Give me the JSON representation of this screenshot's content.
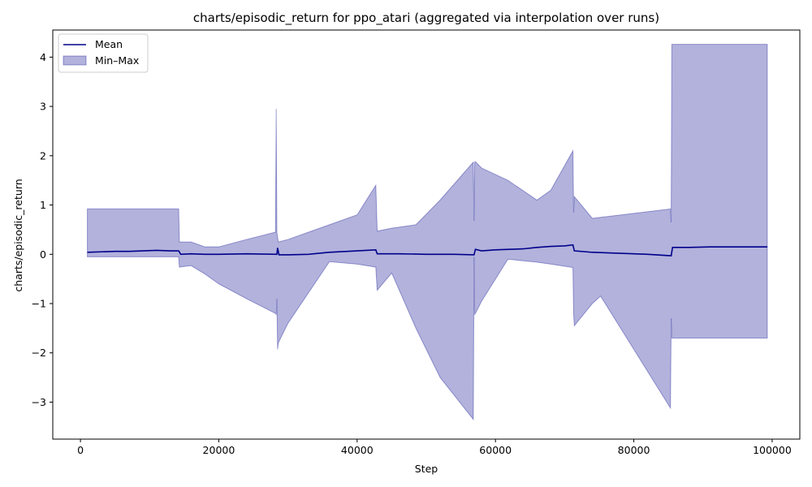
{
  "chart_data": {
    "type": "line",
    "title": "charts/episodic_return for ppo_atari (aggregated via interpolation over runs)",
    "xlabel": "Step",
    "ylabel": "charts/episodic_return",
    "xlim": [
      -4000,
      104000
    ],
    "ylim": [
      -3.75,
      4.55
    ],
    "xticks": [
      0,
      20000,
      40000,
      60000,
      80000,
      100000
    ],
    "yticks": [
      -3,
      -2,
      -1,
      0,
      1,
      2,
      3,
      4
    ],
    "grid": false,
    "legend_position": "top-left",
    "series": [
      {
        "name": "Mean",
        "kind": "line",
        "color": "#00008b",
        "x": [
          1000,
          3000,
          5000,
          7000,
          9000,
          11000,
          13000,
          14200,
          14500,
          16000,
          18000,
          20000,
          24000,
          28400,
          28500,
          28700,
          30000,
          33000,
          36000,
          40000,
          42700,
          42900,
          46000,
          50000,
          54000,
          56900,
          57100,
          58000,
          60000,
          62000,
          64000,
          66000,
          68000,
          70000,
          71200,
          71400,
          74000,
          78000,
          82000,
          85400,
          85600,
          88000,
          91000,
          94000,
          97000,
          99300
        ],
        "y": [
          0.04,
          0.05,
          0.06,
          0.06,
          0.07,
          0.08,
          0.07,
          0.07,
          0.0,
          0.01,
          0.0,
          0.0,
          0.01,
          0.0,
          0.13,
          -0.01,
          -0.01,
          0.0,
          0.04,
          0.07,
          0.09,
          0.01,
          0.01,
          0.0,
          0.0,
          -0.01,
          0.1,
          0.07,
          0.09,
          0.1,
          0.11,
          0.14,
          0.16,
          0.17,
          0.19,
          0.07,
          0.04,
          0.02,
          0.0,
          -0.03,
          0.14,
          0.14,
          0.15,
          0.15,
          0.15,
          0.15
        ]
      },
      {
        "name": "Min–Max",
        "kind": "band",
        "color": "#00008b",
        "x": [
          1000,
          14200,
          14300,
          16000,
          18000,
          20000,
          24000,
          28200,
          28300,
          28400,
          28500,
          28600,
          30000,
          36000,
          40000,
          42700,
          42900,
          45000,
          48500,
          52000,
          56800,
          56900,
          57000,
          57100,
          58000,
          61800,
          66000,
          68000,
          71200,
          71300,
          71400,
          74000,
          75200,
          85300,
          85400,
          85500,
          99300
        ],
        "upper": [
          0.92,
          0.92,
          0.25,
          0.25,
          0.15,
          0.15,
          0.3,
          0.45,
          2.95,
          0.45,
          0.35,
          0.25,
          0.3,
          0.6,
          0.8,
          1.4,
          0.47,
          0.53,
          0.6,
          1.1,
          1.87,
          0.68,
          1.87,
          1.88,
          1.75,
          1.5,
          1.1,
          1.3,
          2.1,
          0.85,
          1.17,
          0.73,
          0.75,
          0.92,
          0.65,
          4.26,
          4.26
        ],
        "lower": [
          -0.05,
          -0.05,
          -0.26,
          -0.23,
          -0.4,
          -0.6,
          -0.9,
          -1.2,
          -1.22,
          -0.9,
          -1.93,
          -1.8,
          -1.4,
          -0.15,
          -0.2,
          -0.26,
          -0.73,
          -0.38,
          -1.5,
          -2.5,
          -3.35,
          -0.05,
          -1.22,
          -1.2,
          -0.95,
          -0.1,
          -0.16,
          -0.2,
          -0.27,
          -1.2,
          -1.45,
          -1.0,
          -0.85,
          -3.12,
          -1.3,
          -1.7,
          -1.7
        ]
      }
    ]
  }
}
